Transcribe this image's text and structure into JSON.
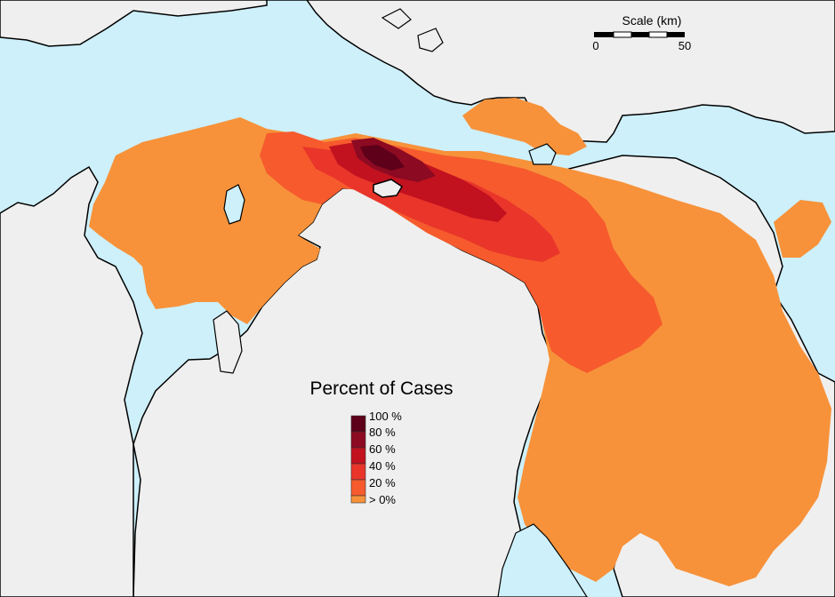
{
  "legend": {
    "title": "Percent of Cases",
    "items": [
      {
        "label": "100 %",
        "color": "#5e0019"
      },
      {
        "label": "80 %",
        "color": "#8c0a22"
      },
      {
        "label": "60 %",
        "color": "#c2121f"
      },
      {
        "label": "40 %",
        "color": "#e9352a"
      },
      {
        "label": "20 %",
        "color": "#f65a2d"
      },
      {
        "label": "> 0%",
        "color": "#f7923a"
      }
    ]
  },
  "scale_bar": {
    "title": "Scale (km)",
    "start_label": "0",
    "end_label": "50"
  },
  "colors": {
    "water": "#cdf0fb",
    "land": "#efefef",
    "coast": "#000000"
  }
}
